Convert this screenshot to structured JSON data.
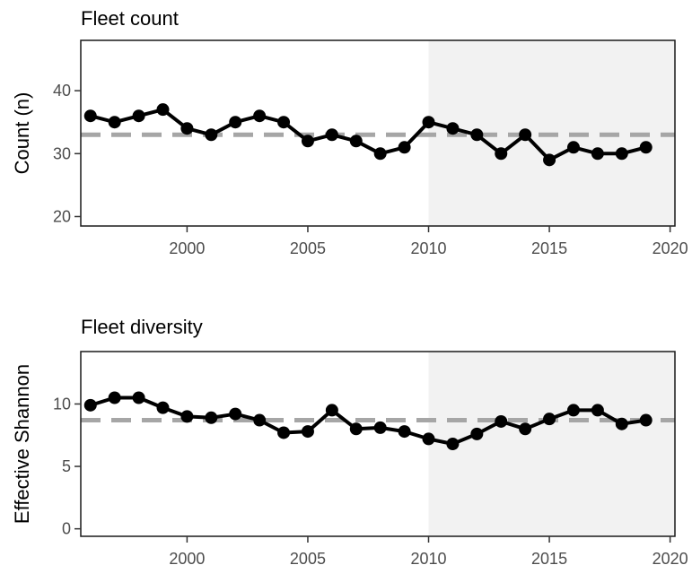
{
  "chart_data": [
    {
      "type": "line",
      "title": "Fleet count",
      "xlabel": "",
      "ylabel": "Count (n)",
      "xlim": [
        1995.6,
        2020.2
      ],
      "ylim": [
        18.5,
        48
      ],
      "x_ticks": [
        2000,
        2005,
        2010,
        2015,
        2020
      ],
      "y_ticks": [
        20,
        30,
        40
      ],
      "grid": false,
      "shaded_region": {
        "from": 2010,
        "to": 2020.2,
        "color": "#f2f2f2"
      },
      "reference_line": {
        "value": 33,
        "style": "dashed",
        "color": "#a6a6a6"
      },
      "series": [
        {
          "x": [
            1996,
            1997,
            1998,
            1999,
            2000,
            2001,
            2002,
            2003,
            2004,
            2005,
            2006,
            2007,
            2008,
            2009,
            2010,
            2011,
            2012,
            2013,
            2014,
            2015,
            2016,
            2017,
            2018,
            2019
          ],
          "values": [
            36,
            35,
            36,
            37,
            34,
            33,
            35,
            36,
            35,
            32,
            33,
            32,
            30,
            31,
            35,
            34,
            33,
            30,
            33,
            29,
            31,
            30,
            30,
            31
          ],
          "color": "#000000"
        }
      ]
    },
    {
      "type": "line",
      "title": "Fleet diversity",
      "xlabel": "",
      "ylabel": "Effective Shannon",
      "xlim": [
        1995.6,
        2020.2
      ],
      "ylim": [
        -0.6,
        14.2
      ],
      "x_ticks": [
        2000,
        2005,
        2010,
        2015,
        2020
      ],
      "y_ticks": [
        0,
        5,
        10
      ],
      "grid": false,
      "shaded_region": {
        "from": 2010,
        "to": 2020.2,
        "color": "#f2f2f2"
      },
      "reference_line": {
        "value": 8.7,
        "style": "dashed",
        "color": "#a6a6a6"
      },
      "series": [
        {
          "x": [
            1996,
            1997,
            1998,
            1999,
            2000,
            2001,
            2002,
            2003,
            2004,
            2005,
            2006,
            2007,
            2008,
            2009,
            2010,
            2011,
            2012,
            2013,
            2014,
            2015,
            2016,
            2017,
            2018,
            2019
          ],
          "values": [
            9.9,
            10.5,
            10.5,
            9.7,
            9.0,
            8.9,
            9.2,
            8.7,
            7.7,
            7.8,
            9.5,
            8.0,
            8.1,
            7.8,
            7.2,
            6.8,
            7.6,
            8.6,
            8.0,
            8.8,
            9.5,
            9.5,
            8.4,
            8.7
          ],
          "color": "#000000"
        }
      ]
    }
  ]
}
